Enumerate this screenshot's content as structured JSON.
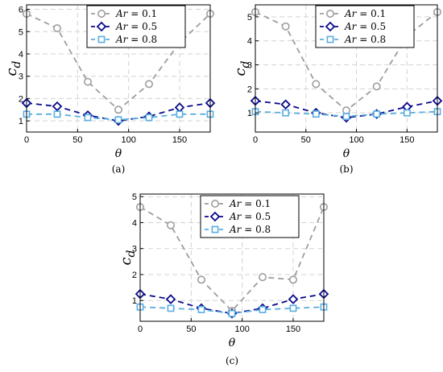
{
  "chart_data": [
    {
      "type": "line",
      "caption": "(a)",
      "xlabel": "θ",
      "ylabel": "c",
      "ylabel_sub": "d",
      "xlim": [
        0,
        180
      ],
      "ylim": [
        0.5,
        6.2
      ],
      "xticks": [
        0,
        50,
        100,
        150
      ],
      "yticks": [
        1,
        2,
        3,
        4,
        5,
        6
      ],
      "grid": true,
      "legend": "top-center",
      "x": [
        0,
        30,
        60,
        90,
        120,
        150,
        180
      ],
      "series": [
        {
          "name": "Ar = 0.1",
          "color": "#9e9e9e",
          "marker": "circle",
          "values": [
            5.8,
            5.15,
            2.75,
            1.5,
            2.65,
            4.5,
            5.8
          ]
        },
        {
          "name": "Ar = 0.5",
          "color": "#0a0a8c",
          "marker": "diamond",
          "values": [
            1.8,
            1.65,
            1.25,
            1.0,
            1.2,
            1.6,
            1.8
          ]
        },
        {
          "name": "Ar = 0.8",
          "color": "#5aaee0",
          "marker": "square",
          "values": [
            1.3,
            1.3,
            1.15,
            1.05,
            1.15,
            1.3,
            1.3
          ]
        }
      ]
    },
    {
      "type": "line",
      "caption": "(b)",
      "xlabel": "θ",
      "ylabel": "c",
      "ylabel_sub": "d",
      "xlim": [
        0,
        180
      ],
      "ylim": [
        0.2,
        5.5
      ],
      "xticks": [
        0,
        50,
        100,
        150
      ],
      "yticks": [
        1,
        2,
        3,
        4,
        5
      ],
      "grid": true,
      "legend": "top-center",
      "x": [
        0,
        30,
        60,
        90,
        120,
        150,
        180
      ],
      "series": [
        {
          "name": "Ar = 0.1",
          "color": "#9e9e9e",
          "marker": "circle",
          "values": [
            5.2,
            4.6,
            2.2,
            1.1,
            2.1,
            4.2,
            5.2
          ]
        },
        {
          "name": "Ar = 0.5",
          "color": "#0a0a8c",
          "marker": "diamond",
          "values": [
            1.5,
            1.35,
            1.0,
            0.8,
            0.95,
            1.25,
            1.5
          ]
        },
        {
          "name": "Ar = 0.8",
          "color": "#5aaee0",
          "marker": "square",
          "values": [
            1.05,
            1.0,
            0.95,
            0.85,
            0.95,
            1.0,
            1.05
          ]
        }
      ]
    },
    {
      "type": "line",
      "caption": "(c)",
      "xlabel": "θ",
      "ylabel": "c",
      "ylabel_sub": "d",
      "xlim": [
        0,
        180
      ],
      "ylim": [
        0.2,
        5.1
      ],
      "xticks": [
        0,
        50,
        100,
        150
      ],
      "yticks": [
        1,
        2,
        3,
        4,
        5
      ],
      "grid": true,
      "legend": "top-center",
      "x": [
        0,
        30,
        60,
        90,
        120,
        150,
        180
      ],
      "series": [
        {
          "name": "Ar = 0.1",
          "color": "#9e9e9e",
          "marker": "circle",
          "values": [
            4.6,
            3.9,
            1.8,
            0.6,
            1.9,
            1.8,
            4.6
          ]
        },
        {
          "name": "Ar = 0.5",
          "color": "#0a0a8c",
          "marker": "diamond",
          "values": [
            1.25,
            1.05,
            0.7,
            0.5,
            0.7,
            1.05,
            1.25
          ]
        },
        {
          "name": "Ar = 0.8",
          "color": "#5aaee0",
          "marker": "square",
          "values": [
            0.75,
            0.7,
            0.65,
            0.5,
            0.65,
            0.7,
            0.75
          ]
        }
      ]
    }
  ]
}
